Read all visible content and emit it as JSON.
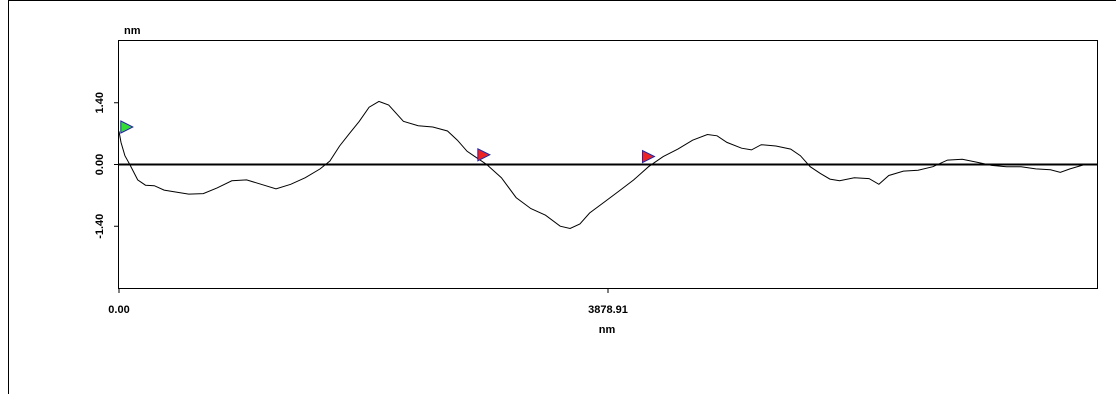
{
  "chart_data": {
    "type": "line",
    "title": "",
    "xlabel": "nm",
    "ylabel": "nm",
    "x_ticks": [
      {
        "value": 0,
        "label": "0.00"
      },
      {
        "value": 3878.91,
        "label": "3878.91"
      }
    ],
    "y_ticks": [
      {
        "value": 1.4,
        "label": "1.40"
      },
      {
        "value": 0.0,
        "label": "0.00"
      },
      {
        "value": -1.4,
        "label": "-1.40"
      }
    ],
    "xlim": [
      0,
      7757.8
    ],
    "ylim": [
      -2.8,
      2.8
    ],
    "grid": false,
    "legend": "none",
    "zero_line": true,
    "line_color": "#000000",
    "series": [
      {
        "values": [
          {
            "x": 0,
            "y": 0.75
          },
          {
            "x": 16,
            "y": 0.5
          },
          {
            "x": 47,
            "y": 0.2
          },
          {
            "x": 86,
            "y": 0.0
          },
          {
            "x": 148,
            "y": -0.35
          },
          {
            "x": 210,
            "y": -0.47
          },
          {
            "x": 280,
            "y": -0.48
          },
          {
            "x": 358,
            "y": -0.58
          },
          {
            "x": 436,
            "y": -0.62
          },
          {
            "x": 553,
            "y": -0.67
          },
          {
            "x": 669,
            "y": -0.66
          },
          {
            "x": 778,
            "y": -0.53
          },
          {
            "x": 895,
            "y": -0.37
          },
          {
            "x": 1012,
            "y": -0.35
          },
          {
            "x": 1128,
            "y": -0.45
          },
          {
            "x": 1245,
            "y": -0.55
          },
          {
            "x": 1362,
            "y": -0.45
          },
          {
            "x": 1478,
            "y": -0.3
          },
          {
            "x": 1595,
            "y": -0.1
          },
          {
            "x": 1673,
            "y": 0.08
          },
          {
            "x": 1750,
            "y": 0.42
          },
          {
            "x": 1828,
            "y": 0.7
          },
          {
            "x": 1906,
            "y": 0.98
          },
          {
            "x": 1984,
            "y": 1.3
          },
          {
            "x": 2062,
            "y": 1.43
          },
          {
            "x": 2139,
            "y": 1.35
          },
          {
            "x": 2256,
            "y": 0.98
          },
          {
            "x": 2373,
            "y": 0.88
          },
          {
            "x": 2489,
            "y": 0.85
          },
          {
            "x": 2606,
            "y": 0.76
          },
          {
            "x": 2684,
            "y": 0.55
          },
          {
            "x": 2761,
            "y": 0.3
          },
          {
            "x": 2839,
            "y": 0.15
          },
          {
            "x": 2917,
            "y": 0.0
          },
          {
            "x": 3033,
            "y": -0.3
          },
          {
            "x": 3150,
            "y": -0.75
          },
          {
            "x": 3267,
            "y": -1.0
          },
          {
            "x": 3383,
            "y": -1.15
          },
          {
            "x": 3500,
            "y": -1.4
          },
          {
            "x": 3578,
            "y": -1.45
          },
          {
            "x": 3656,
            "y": -1.35
          },
          {
            "x": 3733,
            "y": -1.1
          },
          {
            "x": 3850,
            "y": -0.85
          },
          {
            "x": 3967,
            "y": -0.6
          },
          {
            "x": 4083,
            "y": -0.35
          },
          {
            "x": 4200,
            "y": -0.05
          },
          {
            "x": 4317,
            "y": 0.18
          },
          {
            "x": 4433,
            "y": 0.35
          },
          {
            "x": 4550,
            "y": 0.55
          },
          {
            "x": 4667,
            "y": 0.68
          },
          {
            "x": 4744,
            "y": 0.65
          },
          {
            "x": 4822,
            "y": 0.5
          },
          {
            "x": 4939,
            "y": 0.37
          },
          {
            "x": 5017,
            "y": 0.33
          },
          {
            "x": 5094,
            "y": 0.45
          },
          {
            "x": 5211,
            "y": 0.42
          },
          {
            "x": 5328,
            "y": 0.35
          },
          {
            "x": 5405,
            "y": 0.2
          },
          {
            "x": 5483,
            "y": -0.05
          },
          {
            "x": 5561,
            "y": -0.2
          },
          {
            "x": 5639,
            "y": -0.33
          },
          {
            "x": 5716,
            "y": -0.37
          },
          {
            "x": 5833,
            "y": -0.3
          },
          {
            "x": 5950,
            "y": -0.32
          },
          {
            "x": 6028,
            "y": -0.45
          },
          {
            "x": 6106,
            "y": -0.25
          },
          {
            "x": 6222,
            "y": -0.15
          },
          {
            "x": 6339,
            "y": -0.13
          },
          {
            "x": 6456,
            "y": -0.05
          },
          {
            "x": 6572,
            "y": 0.1
          },
          {
            "x": 6689,
            "y": 0.12
          },
          {
            "x": 6806,
            "y": 0.05
          },
          {
            "x": 6922,
            "y": -0.02
          },
          {
            "x": 7039,
            "y": -0.05
          },
          {
            "x": 7156,
            "y": -0.05
          },
          {
            "x": 7272,
            "y": -0.1
          },
          {
            "x": 7389,
            "y": -0.12
          },
          {
            "x": 7467,
            "y": -0.18
          },
          {
            "x": 7544,
            "y": -0.1
          },
          {
            "x": 7661,
            "y": 0.0
          },
          {
            "x": 7757.8,
            "y": 0.0
          }
        ]
      }
    ],
    "markers": [
      {
        "x": 62,
        "y": 0.85,
        "color": "#33dd33"
      },
      {
        "x": 2894,
        "y": 0.22,
        "color": "#ee2222"
      },
      {
        "x": 4200,
        "y": 0.18,
        "color": "#ee2222"
      }
    ]
  }
}
